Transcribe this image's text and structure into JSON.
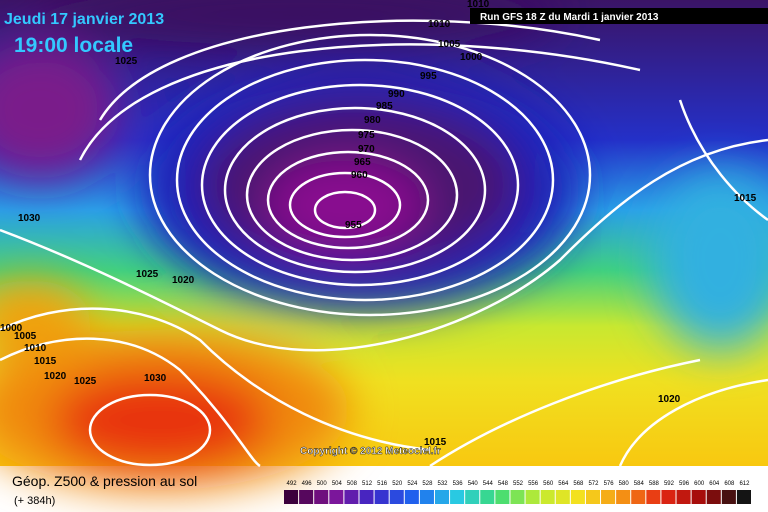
{
  "header": {
    "date": "Jeudi 17 janvier 2013",
    "time": "19:00 locale",
    "run": "Run GFS 18 Z du Mardi 1 janvier 2013"
  },
  "isobar_labels": [
    1010,
    1010,
    1005,
    1000,
    995,
    990,
    985,
    980,
    975,
    970,
    965,
    960,
    955,
    1025,
    1030,
    1025,
    1020,
    1015,
    1000,
    1005,
    1010,
    1015,
    1020,
    1025,
    1030,
    1020,
    1015
  ],
  "copyright": "Copyright © 2012 Meteociel.fr",
  "footer": {
    "title": "Géop. Z500 & pression au sol",
    "lead": "(+ 384h)"
  },
  "legend": {
    "values": [
      492,
      496,
      500,
      504,
      508,
      512,
      516,
      520,
      524,
      528,
      532,
      536,
      540,
      544,
      548,
      552,
      556,
      560,
      564,
      568,
      572,
      576,
      580,
      584,
      588,
      592,
      596,
      600,
      604,
      608,
      612
    ]
  }
}
